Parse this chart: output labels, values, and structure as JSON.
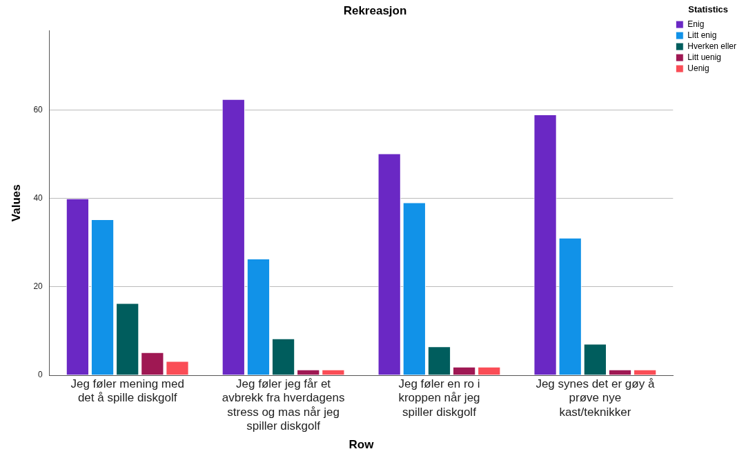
{
  "chart_data": {
    "type": "bar",
    "title": "Rekreasjon",
    "xlabel": "Row",
    "ylabel": "Values",
    "legend_title": "Statistics",
    "categories": [
      "Jeg føler mening med det å spille diskgolf",
      "Jeg føler jeg får et avbrekk fra hverdagens stress og mas når jeg spiller diskgolf",
      "Jeg føler en ro i kroppen når jeg spiller diskgolf",
      "Jeg synes det er gøy å prøve nye kast/teknikker"
    ],
    "series": [
      {
        "name": "Enig",
        "color": "#6a28c4",
        "values": [
          40,
          62.5,
          50.2,
          59
        ]
      },
      {
        "name": "Litt enig",
        "color": "#1192e8",
        "values": [
          35.3,
          26.4,
          39.1,
          31.1
        ]
      },
      {
        "name": "Hverken eller",
        "color": "#005d5d",
        "values": [
          16.3,
          8.3,
          6.5,
          7.1
        ]
      },
      {
        "name": "Litt uenig",
        "color": "#9f1853",
        "values": [
          5.2,
          1.3,
          1.9,
          1.3
        ]
      },
      {
        "name": "Uenig",
        "color": "#fa4d56",
        "values": [
          3.2,
          1.3,
          1.9,
          1.3
        ]
      }
    ],
    "ylim": [
      0,
      78
    ],
    "yticks": [
      0,
      20,
      40,
      60
    ],
    "grid": "y",
    "legend": "top right"
  }
}
